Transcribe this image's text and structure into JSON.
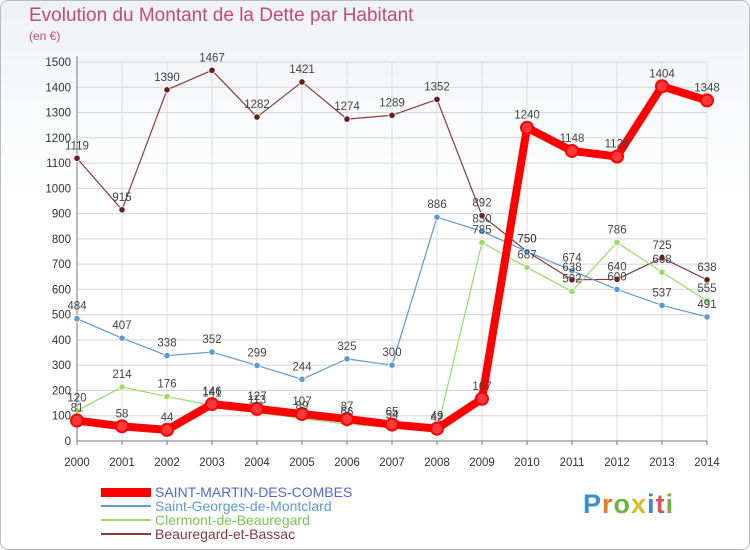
{
  "title": "Evolution du Montant de la Dette par Habitant",
  "subtitle": "(en €)",
  "logo": "Proxiti",
  "chart_data": {
    "type": "line",
    "title": "Evolution du Montant de la Dette par Habitant",
    "subtitle": "(en €)",
    "x": [
      "2000",
      "2001",
      "2002",
      "2003",
      "2004",
      "2005",
      "2006",
      "2007",
      "2008",
      "2009",
      "2010",
      "2011",
      "2012",
      "2013",
      "2014"
    ],
    "y_ticks": [
      0,
      100,
      200,
      300,
      400,
      500,
      600,
      700,
      800,
      900,
      1000,
      1100,
      1200,
      1300,
      1400,
      1500
    ],
    "ylim": [
      0,
      1500
    ],
    "grid": true,
    "legend_position": "bottom-left",
    "series": [
      {
        "name": "SAINT-MARTIN-DES-COMBES",
        "color": "#ff0000",
        "marker": "#ff3a3a",
        "width": 8,
        "legend_color": "#5566dd",
        "values": [
          81,
          58,
          44,
          146,
          127,
          107,
          87,
          65,
          49,
          167,
          1240,
          1148,
          1126,
          1404,
          1348
        ]
      },
      {
        "name": "Saint-Georges-de-Montclard",
        "color": "#5b9bd5",
        "marker": "#5b9bd5",
        "width": 1.2,
        "legend_color": "#5b9bd5",
        "values": [
          484,
          407,
          338,
          352,
          299,
          244,
          325,
          300,
          886,
          830,
          750,
          674,
          600,
          537,
          491
        ]
      },
      {
        "name": "Clermont-de-Beauregard",
        "color": "#99dd66",
        "marker": "#99dd66",
        "width": 1.2,
        "legend_color": "#7cc453",
        "values": [
          120,
          214,
          176,
          141,
          113,
          89,
          66,
          54,
          42,
          785,
          687,
          592,
          786,
          668,
          555
        ]
      },
      {
        "name": "Beauregard-et-Bassac",
        "color": "#8b3a3a",
        "marker": "#6b1a1a",
        "width": 1.2,
        "legend_color": "#8b3a3a",
        "values": [
          1119,
          915,
          1390,
          1467,
          1282,
          1421,
          1274,
          1289,
          1352,
          892,
          750,
          638,
          640,
          725,
          638
        ]
      }
    ],
    "data_labels": [
      [
        "81",
        "58",
        "44",
        "146",
        "127",
        "107",
        "87",
        "65",
        "49",
        "167",
        "1240",
        "1148",
        "1126",
        "1404",
        "1348"
      ],
      [
        "484",
        "407",
        "338",
        "352",
        "299",
        "244",
        "325",
        "300",
        "886",
        "830",
        "750",
        "674",
        "600",
        "537",
        "491"
      ],
      [
        "120",
        "214",
        "176",
        "141",
        "113",
        "89",
        "66",
        "54",
        "42",
        "785",
        "687",
        "592",
        "786",
        "668",
        "555"
      ],
      [
        "1119",
        "915",
        "1390",
        "1467",
        "1282",
        "1421",
        "1274",
        "1289",
        "1352",
        "892",
        "750",
        "638",
        "640",
        "725",
        "638"
      ]
    ]
  }
}
